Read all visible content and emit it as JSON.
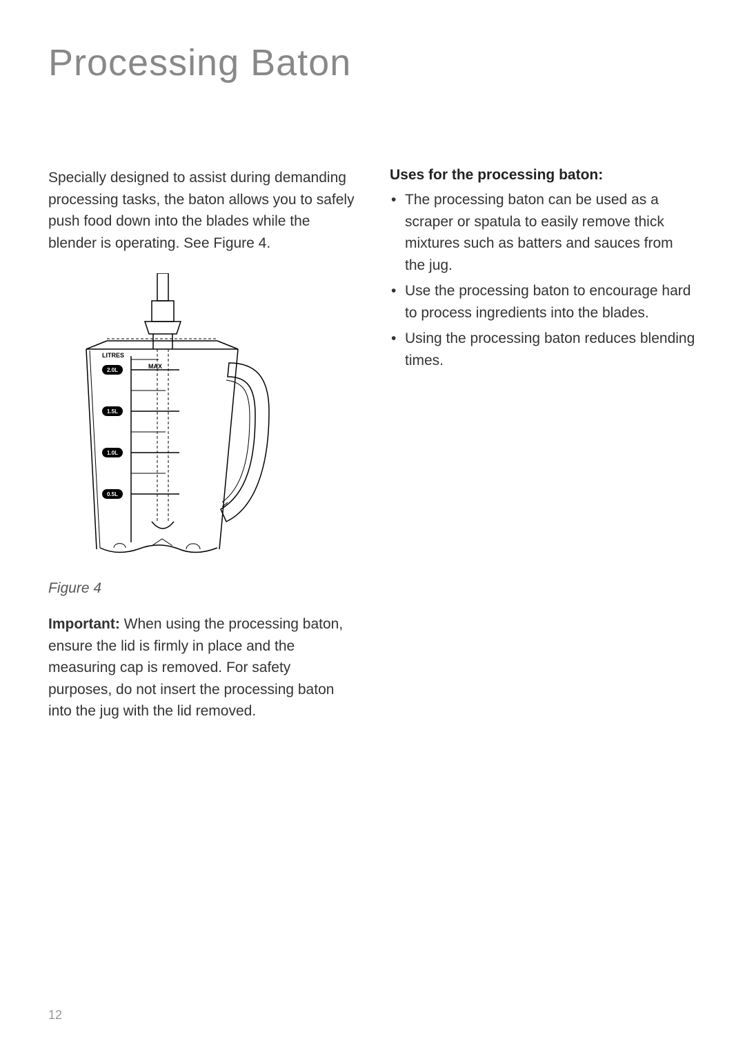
{
  "page": {
    "title": "Processing Baton",
    "page_number": "12"
  },
  "left_column": {
    "intro": "Specially designed to assist during demanding processing tasks, the baton allows you to safely push food down into the blades while the blender is operating. See Figure 4.",
    "figure_caption": "Figure 4",
    "important_label": "Important:",
    "important_text": " When using the processing baton, ensure the lid is firmly in place and the measuring cap is removed. For safety purposes, do not insert the processing baton into the jug with the lid removed."
  },
  "right_column": {
    "subhead": "Uses for the processing baton:",
    "bullets": [
      "The processing baton can be used as a scraper or spatula to easily remove thick mixtures such as batters and sauces from the jug.",
      "Use the processing baton to encourage hard to process ingredients into the blades.",
      "Using the processing baton reduces blending times."
    ]
  },
  "diagram": {
    "stroke": "#000000",
    "stroke_width": 1.5,
    "dash_pattern": "4 3",
    "labels": {
      "header": "LITRES",
      "max": "MAX",
      "levels": [
        "2.0L",
        "1.5L",
        "1.0L",
        "0.5L"
      ]
    },
    "level_y": [
      140,
      200,
      260,
      320
    ],
    "label_fontsize": 9,
    "pill_bg": "#000000",
    "pill_fg": "#ffffff"
  }
}
